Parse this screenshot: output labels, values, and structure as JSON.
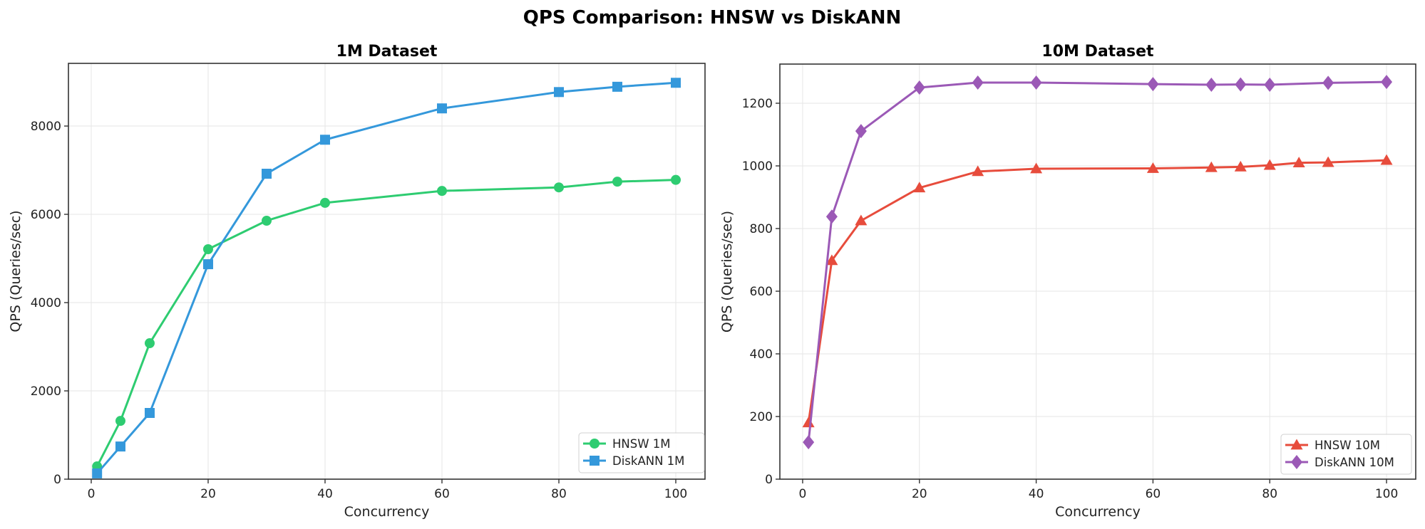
{
  "suptitle": "QPS Comparison: HNSW vs DiskANN",
  "chart_data": [
    {
      "type": "line",
      "title": "1M Dataset",
      "xlabel": "Concurrency",
      "ylabel": "QPS (Queries/sec)",
      "xlim": [
        -3.9,
        105
      ],
      "ylim": [
        0,
        9420
      ],
      "xticks": [
        0,
        20,
        40,
        60,
        80,
        100
      ],
      "xtick_labels": [
        "0",
        "20",
        "40",
        "60",
        "80",
        "100"
      ],
      "yticks": [
        0,
        2000,
        4000,
        6000,
        8000
      ],
      "ytick_labels": [
        "0",
        "2000",
        "4000",
        "6000",
        "8000"
      ],
      "grid": true,
      "legend_position": "lower-right",
      "series": [
        {
          "name": "HNSW 1M",
          "color": "#2ecc71",
          "marker": "circle",
          "x": [
            1,
            5,
            10,
            20,
            30,
            40,
            60,
            80,
            90,
            100
          ],
          "y": [
            290,
            1320,
            3080,
            5210,
            5855,
            6260,
            6530,
            6610,
            6740,
            6780
          ]
        },
        {
          "name": "DiskANN 1M",
          "color": "#3498db",
          "marker": "square",
          "x": [
            1,
            5,
            10,
            20,
            30,
            40,
            60,
            80,
            90,
            100
          ],
          "y": [
            130,
            740,
            1500,
            4870,
            6920,
            7690,
            8400,
            8770,
            8890,
            8980
          ]
        }
      ]
    },
    {
      "type": "line",
      "title": "10M Dataset",
      "xlabel": "Concurrency",
      "ylabel": "QPS (Queries/sec)",
      "xlim": [
        -3.9,
        105
      ],
      "ylim": [
        0,
        1325
      ],
      "xticks": [
        0,
        20,
        40,
        60,
        80,
        100
      ],
      "xtick_labels": [
        "0",
        "20",
        "40",
        "60",
        "80",
        "100"
      ],
      "yticks": [
        0,
        200,
        400,
        600,
        800,
        1000,
        1200
      ],
      "ytick_labels": [
        "0",
        "200",
        "400",
        "600",
        "800",
        "1000",
        "1200"
      ],
      "grid": true,
      "legend_position": "lower-right",
      "series": [
        {
          "name": "HNSW 10M",
          "color": "#e74c3c",
          "marker": "triangle",
          "x": [
            1,
            5,
            10,
            20,
            30,
            40,
            60,
            70,
            75,
            80,
            85,
            90,
            100
          ],
          "y": [
            180,
            698,
            825,
            930,
            982,
            991,
            992,
            995,
            997,
            1002,
            1010,
            1011,
            1018
          ]
        },
        {
          "name": "DiskANN 10M",
          "color": "#9b59b6",
          "marker": "diamond",
          "x": [
            1,
            5,
            10,
            20,
            30,
            40,
            60,
            70,
            75,
            80,
            90,
            100
          ],
          "y": [
            118,
            838,
            1111,
            1250,
            1266,
            1266,
            1261,
            1259,
            1260,
            1259,
            1265,
            1268
          ]
        }
      ]
    }
  ]
}
